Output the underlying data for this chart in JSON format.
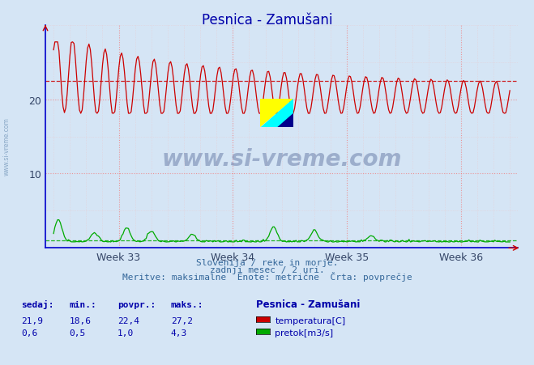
{
  "title": "Pesnica - Zamušani",
  "bg_color": "#d5e5f5",
  "plot_bg_color": "#d5e5f5",
  "grid_major_color": "#f08080",
  "grid_minor_color": "#f0c0c0",
  "xlabel_weeks": [
    "Week 33",
    "Week 34",
    "Week 35",
    "Week 36"
  ],
  "ylim": [
    0,
    30
  ],
  "n_points": 336,
  "temp_min": 18.6,
  "temp_max": 27.2,
  "temp_avg": 22.4,
  "temp_current": 21.9,
  "flow_min": 0.5,
  "flow_max": 4.3,
  "flow_avg": 1.0,
  "flow_current": 0.6,
  "temp_color": "#cc0000",
  "flow_color": "#00aa00",
  "watermark": "www.si-vreme.com",
  "subtitle1": "Slovenija / reke in morje.",
  "subtitle2": "zadnji mesec / 2 uri.",
  "subtitle3": "Meritve: maksimalne  Enote: metrične  Črta: povprečje",
  "legend_title": "Pesnica - Zamušani",
  "legend_temp": "temperatura[C]",
  "legend_flow": "pretok[m3/s]",
  "stat_headers": [
    "sedaj:",
    "min.:",
    "povpr.:",
    "maks.:"
  ],
  "stat_temp": [
    "21,9",
    "18,6",
    "22,4",
    "27,2"
  ],
  "stat_flow": [
    "0,6",
    "0,5",
    "1,0",
    "4,3"
  ],
  "axis_color": "#0000cc",
  "tick_color": "#334466",
  "text_color": "#336699",
  "label_color": "#0000aa"
}
